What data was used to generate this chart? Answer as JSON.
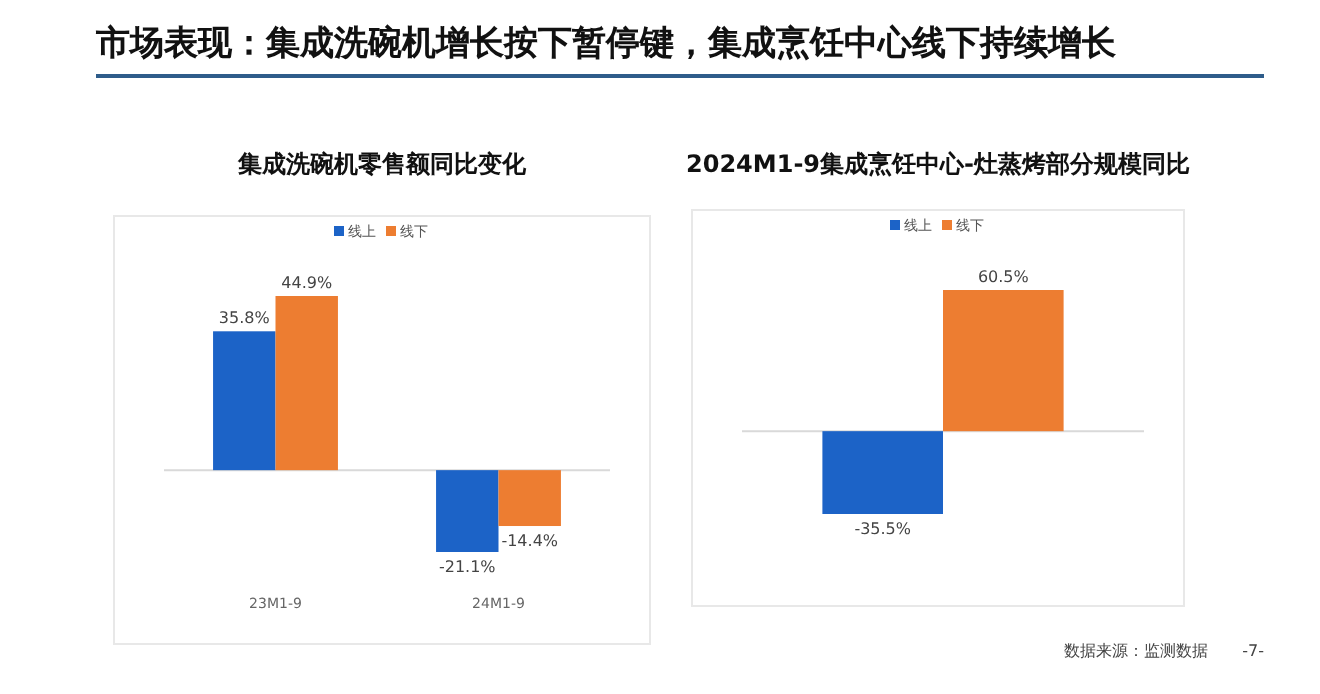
{
  "chart_data": [
    {
      "type": "other",
      "title": "市场表现：集成洗碗机增长按下暂停键，集成烹饪中心线下持续增长",
      "annotations": [
        "数据来源：监测数据",
        "-7-"
      ]
    },
    {
      "type": "bar",
      "title": "集成洗碗机零售额同比变化",
      "categories": [
        "23M1-9",
        "24M1-9"
      ],
      "legend": "top",
      "data_labels": true,
      "series": [
        {
          "name": "线上",
          "color": "#1c63c7",
          "values": [
            35.8,
            -21.1
          ],
          "value_labels": [
            "35.8%",
            "-21.1%"
          ]
        },
        {
          "name": "线下",
          "color": "#ed7d31",
          "values": [
            44.9,
            -14.4
          ],
          "value_labels": [
            "44.9%",
            "-14.4%"
          ]
        }
      ]
    },
    {
      "type": "bar",
      "title": "2024M1-9集成烹饪中心-灶蒸烤部分规模同比",
      "categories": [
        null
      ],
      "legend": "top",
      "data_labels": true,
      "series": [
        {
          "name": "线上",
          "color": "#1c63c7",
          "values": [
            -35.5
          ],
          "value_labels": [
            "-35.5%"
          ]
        },
        {
          "name": "线下",
          "color": "#ed7d31",
          "values": [
            60.5
          ],
          "value_labels": [
            "60.5%"
          ]
        }
      ]
    }
  ]
}
